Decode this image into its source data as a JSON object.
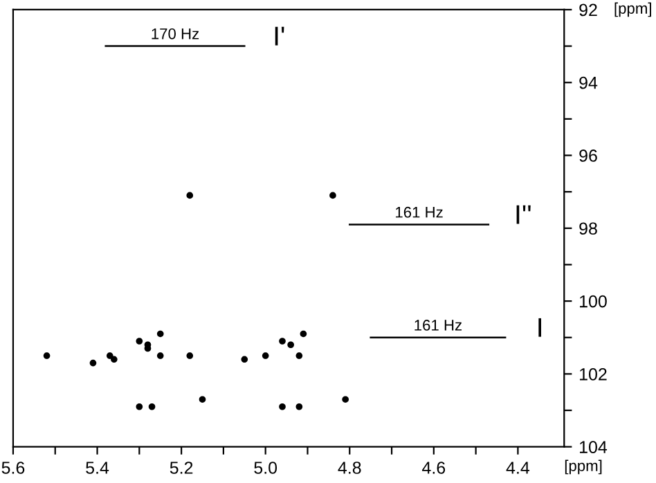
{
  "chart_data": {
    "type": "scatter",
    "xlabel": "[ppm]",
    "ylabel": "[ppm]",
    "xlim": [
      5.6,
      4.29
    ],
    "ylim": [
      104,
      92
    ],
    "xticks": [
      5.6,
      {
        "value": 5.5,
        "label": null
      },
      5.4,
      {
        "value": 5.3,
        "label": null
      },
      5.2,
      {
        "value": 5.1,
        "label": null
      },
      {
        "value": 5,
        "label": "5.0"
      },
      {
        "value": 4.9,
        "label": null
      },
      4.8,
      {
        "value": 4.7,
        "label": null
      },
      4.6,
      {
        "value": 4.5,
        "label": null
      },
      4.4
    ],
    "yticks": [
      92,
      {
        "value": 93,
        "label": null
      },
      94,
      {
        "value": 95,
        "label": null
      },
      96,
      {
        "value": 97,
        "label": null
      },
      98,
      {
        "value": 99,
        "label": null
      },
      100,
      {
        "value": 101,
        "label": null
      },
      102,
      {
        "value": 103,
        "label": null
      },
      104
    ],
    "series": [
      {
        "marker": "circle",
        "color": "#000000",
        "x": [
          5.52,
          5.41,
          5.36,
          5.37,
          5.3,
          5.28,
          5.25,
          5.25,
          5.28,
          5.18,
          5.05,
          5.0,
          4.96,
          4.94,
          4.91,
          4.92,
          5.15,
          5.3,
          5.27,
          4.96,
          4.92,
          4.81,
          5.18,
          4.84
        ],
        "values": [
          101.5,
          101.7,
          101.6,
          101.5,
          101.1,
          101.2,
          100.9,
          101.5,
          101.3,
          101.5,
          101.6,
          101.5,
          101.1,
          101.2,
          100.9,
          101.5,
          102.7,
          102.9,
          102.9,
          102.9,
          102.9,
          102.7,
          97.1,
          97.1
        ]
      },
      {
        "type": "line",
        "marker": "none",
        "color": "#000000",
        "x": [
          5.38,
          5.05
        ],
        "values": [
          93.0,
          93.0
        ]
      },
      {
        "type": "line",
        "marker": "none",
        "color": "#000000",
        "x": [
          4.8,
          4.47
        ],
        "values": [
          97.9,
          97.9
        ]
      },
      {
        "type": "line",
        "marker": "none",
        "color": "#000000",
        "x": [
          4.75,
          4.43
        ],
        "values": [
          101.0,
          101.0
        ]
      }
    ],
    "annotations": [
      "170 Hz",
      "I'",
      "161 Hz",
      "I''",
      "161 Hz",
      "I"
    ]
  }
}
